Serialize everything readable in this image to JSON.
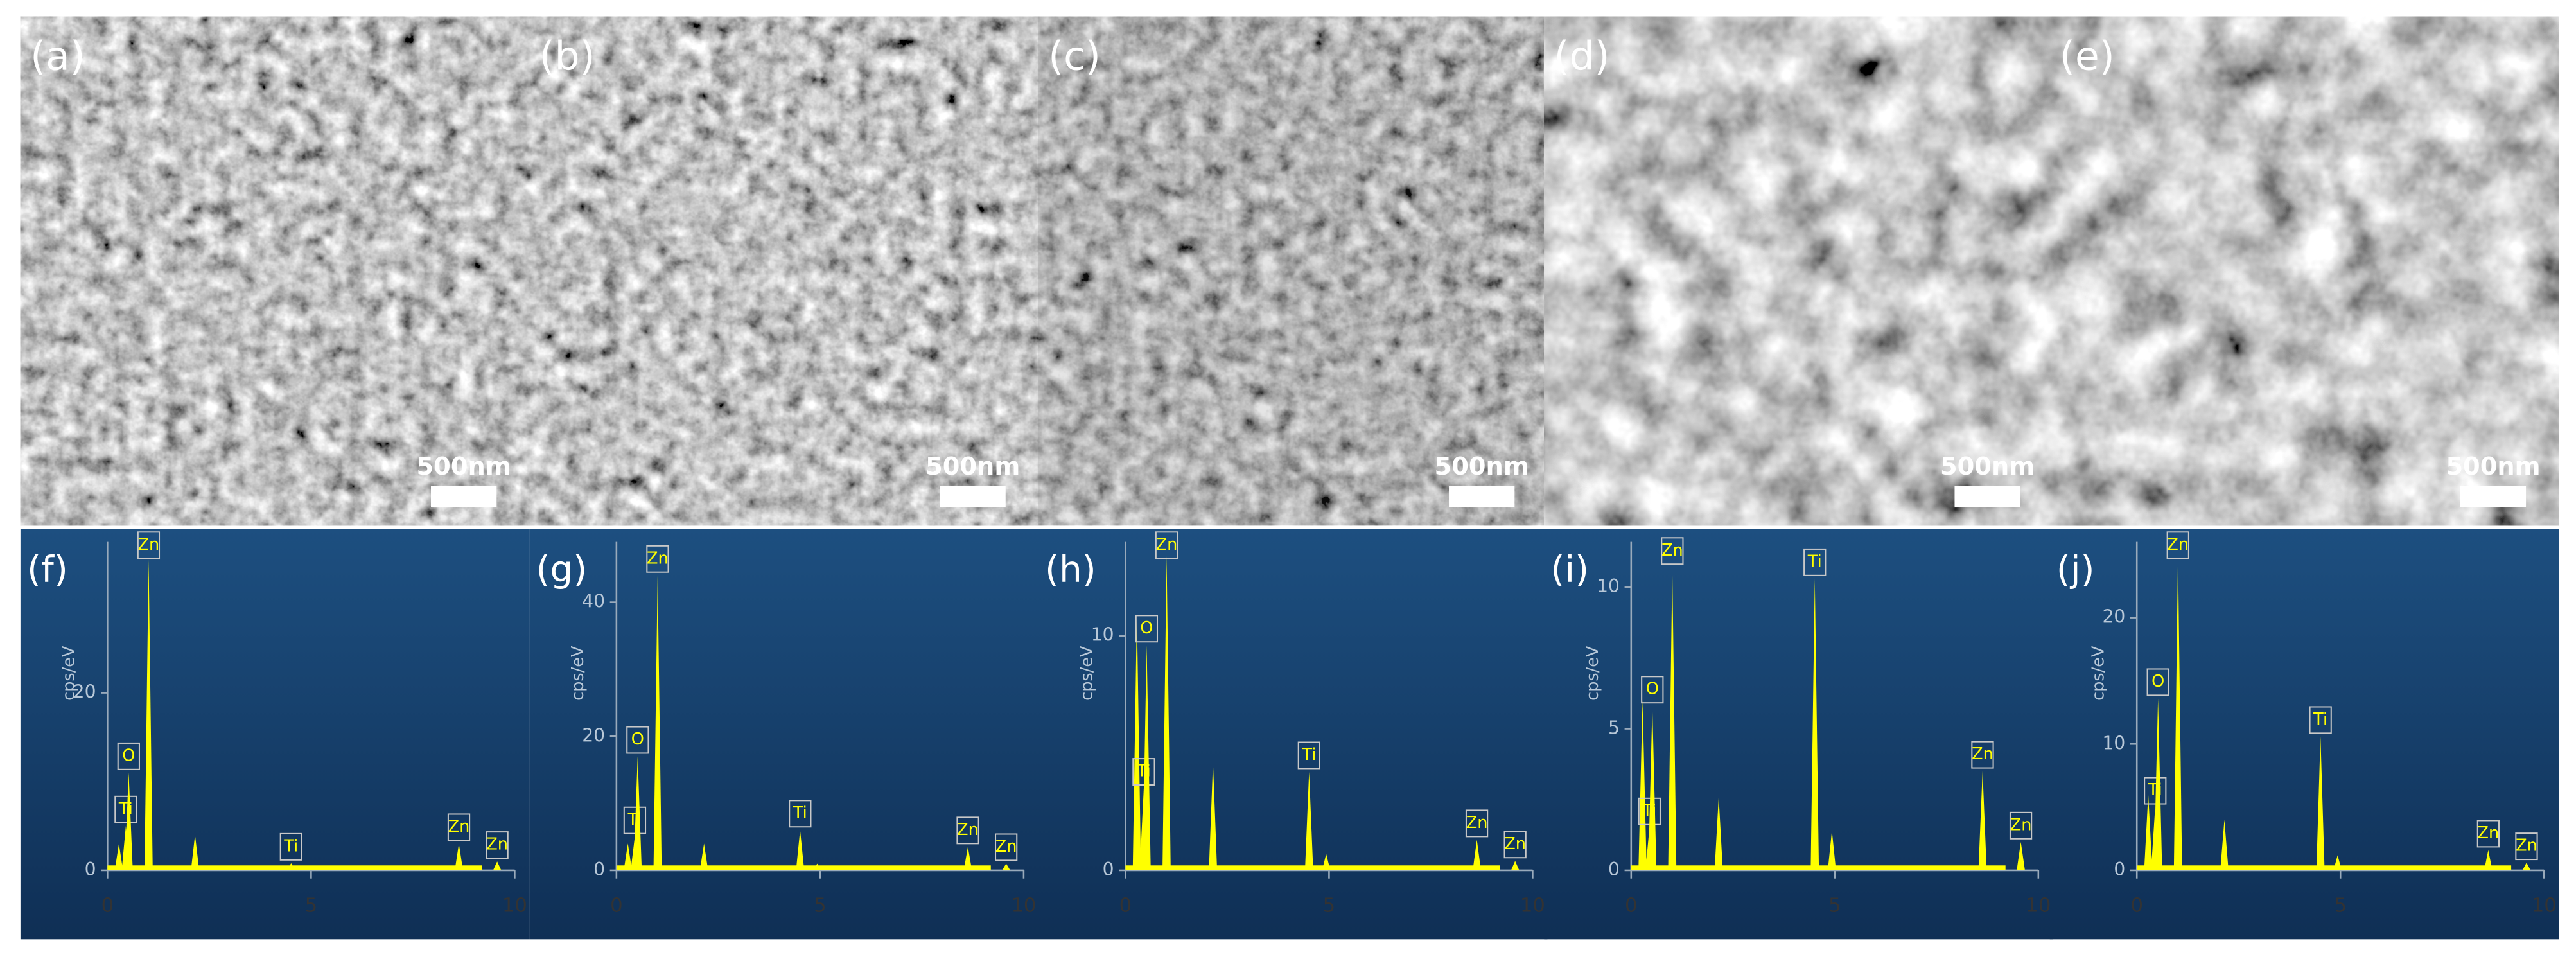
{
  "sem_images": [
    {
      "label": "(a)",
      "scale_bar": "500nm"
    },
    {
      "label": "(b)",
      "scale_bar": "500nm"
    },
    {
      "label": "(c)",
      "scale_bar": "500nm"
    },
    {
      "label": "(d)",
      "scale_bar": "500nm"
    },
    {
      "label": "(e)",
      "scale_bar": "500nm"
    }
  ],
  "chart_data": [
    {
      "type": "spectrum",
      "label": "(f)",
      "y_label": "cps/eV",
      "color": "#ffff00",
      "x": [
        0.28,
        0.45,
        0.52,
        1.01,
        2.15,
        4.51,
        4.93,
        8.63,
        9.57
      ],
      "values": [
        3,
        5,
        11,
        35,
        4,
        0.8,
        0.3,
        3,
        1
      ],
      "peak_labels": [
        null,
        "Ti",
        "O",
        "Zn",
        null,
        "Ti",
        null,
        "Zn",
        "Zn"
      ],
      "xlim": [
        0,
        10
      ],
      "ylim": [
        0,
        37
      ],
      "xticks": [
        0,
        5,
        10
      ],
      "yticks": [
        0,
        20
      ]
    },
    {
      "type": "spectrum",
      "label": "(g)",
      "y_label": "cps/eV",
      "color": "#ffff00",
      "x": [
        0.28,
        0.45,
        0.52,
        1.01,
        2.15,
        4.51,
        4.93,
        8.63,
        9.57
      ],
      "values": [
        4,
        5,
        17,
        44,
        4,
        6,
        1,
        3.5,
        1
      ],
      "peak_labels": [
        null,
        "Ti",
        "O",
        "Zn",
        null,
        "Ti",
        null,
        "Zn",
        "Zn"
      ],
      "xlim": [
        0,
        10
      ],
      "ylim": [
        0,
        49
      ],
      "xticks": [
        0,
        5,
        10
      ],
      "yticks": [
        0,
        20,
        40
      ]
    },
    {
      "type": "spectrum",
      "label": "(h)",
      "y_label": "cps/eV",
      "color": "#ffff00",
      "x": [
        0.28,
        0.45,
        0.52,
        1.01,
        2.15,
        4.51,
        4.93,
        8.63,
        9.57
      ],
      "values": [
        11,
        3.5,
        9.6,
        13.4,
        4.6,
        4.2,
        0.7,
        1.3,
        0.4
      ],
      "peak_labels": [
        null,
        "Ti",
        "O",
        "Zn",
        null,
        "Ti",
        null,
        "Zn",
        "Zn"
      ],
      "xlim": [
        0,
        10
      ],
      "ylim": [
        0,
        14
      ],
      "xticks": [
        0,
        5,
        10
      ],
      "yticks": [
        0,
        10
      ]
    },
    {
      "type": "spectrum",
      "label": "(i)",
      "y_label": "cps/eV",
      "color": "#ffff00",
      "x": [
        0.28,
        0.45,
        0.52,
        1.01,
        2.15,
        4.51,
        4.93,
        8.63,
        9.57
      ],
      "values": [
        6,
        1.5,
        5.8,
        10.7,
        2.6,
        10.3,
        1.4,
        3.5,
        1
      ],
      "peak_labels": [
        null,
        "Ti",
        "O",
        "Zn",
        null,
        "Ti",
        null,
        "Zn",
        "Zn"
      ],
      "xlim": [
        0,
        10
      ],
      "ylim": [
        0,
        11.6
      ],
      "xticks": [
        0,
        5,
        10
      ],
      "yticks": [
        0,
        5,
        10
      ]
    },
    {
      "type": "spectrum",
      "label": "(j)",
      "y_label": "cps/eV",
      "color": "#ffff00",
      "x": [
        0.28,
        0.45,
        0.52,
        1.01,
        2.15,
        4.51,
        4.93,
        8.63,
        9.57
      ],
      "values": [
        6,
        5,
        13.6,
        25,
        4,
        10.6,
        1.2,
        1.6,
        0.6
      ],
      "peak_labels": [
        null,
        "Ti",
        "O",
        "Zn",
        null,
        "Ti",
        null,
        "Zn",
        "Zn"
      ],
      "xlim": [
        0,
        10
      ],
      "ylim": [
        0,
        26
      ],
      "xticks": [
        0,
        5,
        10
      ],
      "yticks": [
        0,
        10,
        20
      ]
    }
  ]
}
